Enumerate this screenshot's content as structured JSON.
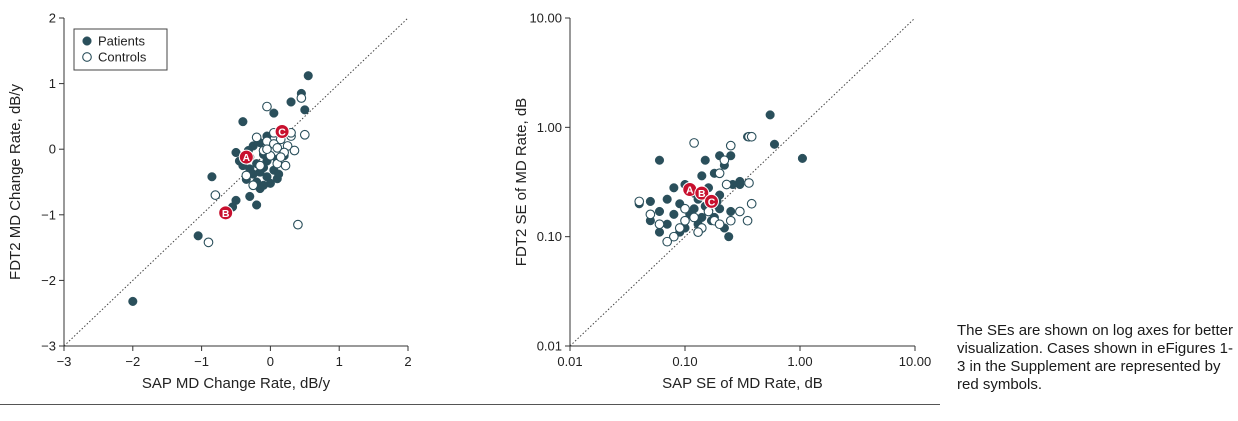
{
  "colors": {
    "patients": "#2a4f5b",
    "highlight": "#c8102e",
    "axis": "#333333",
    "text": "#222222"
  },
  "note": "The SEs are shown on log axes for better visualization. Cases shown in eFigures 1-3 in the Supplement are represented by red symbols.",
  "chart_data": [
    {
      "type": "scatter",
      "title": "",
      "xlabel": "SAP MD Change Rate, dB/y",
      "ylabel": "FDT2 MD Change Rate, dB/y",
      "xlim": [
        -3,
        2
      ],
      "ylim": [
        -3,
        2
      ],
      "xticks": [
        -3,
        -2,
        -1,
        0,
        1,
        2
      ],
      "yticks": [
        -3,
        -2,
        -1,
        0,
        1,
        2
      ],
      "xtick_labels": [
        "−3",
        "−2",
        "−1",
        "0",
        "1",
        "2"
      ],
      "ytick_labels": [
        "−3",
        "−2",
        "−1",
        "0",
        "1",
        "2"
      ],
      "scale": "linear",
      "identity_line": true,
      "legend_position": "top-left",
      "series": [
        {
          "name": "Patients",
          "marker": "filled",
          "points": [
            [
              0.55,
              1.12
            ],
            [
              0.45,
              0.85
            ],
            [
              0.3,
              0.72
            ],
            [
              -0.4,
              0.42
            ],
            [
              0.05,
              0.55
            ],
            [
              -0.15,
              0.1
            ],
            [
              -0.1,
              -0.08
            ],
            [
              -0.3,
              -0.12
            ],
            [
              -0.45,
              -0.18
            ],
            [
              -0.05,
              -0.18
            ],
            [
              0.1,
              -0.15
            ],
            [
              -0.2,
              -0.22
            ],
            [
              -0.3,
              -0.3
            ],
            [
              -0.1,
              -0.28
            ],
            [
              0.05,
              -0.32
            ],
            [
              -0.15,
              -0.35
            ],
            [
              -0.25,
              -0.38
            ],
            [
              -0.05,
              -0.42
            ],
            [
              0.1,
              -0.45
            ],
            [
              -0.35,
              -0.46
            ],
            [
              -0.2,
              -0.5
            ],
            [
              0.0,
              -0.52
            ],
            [
              -0.15,
              -0.6
            ],
            [
              -0.3,
              -0.72
            ],
            [
              -0.5,
              -0.78
            ],
            [
              -0.2,
              -0.85
            ],
            [
              -0.55,
              -0.88
            ],
            [
              -0.85,
              -0.42
            ],
            [
              -1.05,
              -1.32
            ],
            [
              -2.0,
              -2.32
            ],
            [
              0.5,
              0.6
            ],
            [
              0.15,
              0.3
            ],
            [
              -0.05,
              0.2
            ],
            [
              -0.25,
              0.05
            ],
            [
              -0.4,
              -0.25
            ],
            [
              0.2,
              -0.1
            ],
            [
              -0.1,
              -0.55
            ],
            [
              0.12,
              -0.38
            ],
            [
              -0.5,
              -0.05
            ],
            [
              -0.32,
              -0.02
            ]
          ]
        },
        {
          "name": "Controls",
          "marker": "open",
          "points": [
            [
              -0.05,
              0.65
            ],
            [
              0.45,
              0.78
            ],
            [
              0.5,
              0.22
            ],
            [
              0.3,
              0.2
            ],
            [
              0.15,
              0.15
            ],
            [
              -0.05,
              0.12
            ],
            [
              0.25,
              0.05
            ],
            [
              0.05,
              0.08
            ],
            [
              0.1,
              0.02
            ],
            [
              -0.1,
              -0.02
            ],
            [
              0.2,
              -0.05
            ],
            [
              0.0,
              -0.1
            ],
            [
              0.35,
              -0.02
            ],
            [
              0.22,
              -0.25
            ],
            [
              -0.15,
              -0.25
            ],
            [
              -0.35,
              -0.4
            ],
            [
              -0.25,
              -0.55
            ],
            [
              -0.8,
              -0.7
            ],
            [
              -0.9,
              -1.42
            ],
            [
              0.4,
              -1.15
            ],
            [
              0.05,
              0.25
            ],
            [
              -0.2,
              0.18
            ],
            [
              0.3,
              0.25
            ],
            [
              0.1,
              -0.22
            ],
            [
              -0.05,
              0.0
            ],
            [
              0.15,
              -0.12
            ]
          ]
        }
      ],
      "highlighted": [
        {
          "label": "A",
          "x": -0.35,
          "y": -0.12
        },
        {
          "label": "B",
          "x": -0.65,
          "y": -0.97
        },
        {
          "label": "C",
          "x": 0.17,
          "y": 0.27
        }
      ]
    },
    {
      "type": "scatter",
      "title": "",
      "xlabel": "SAP SE of MD Rate, dB",
      "ylabel": "FDT2 SE of MD Rate, dB",
      "xlim": [
        0.01,
        10
      ],
      "ylim": [
        0.01,
        10
      ],
      "xticks": [
        0.01,
        0.1,
        1,
        10
      ],
      "yticks": [
        0.01,
        0.1,
        1,
        10
      ],
      "xtick_labels": [
        "0.01",
        "0.10",
        "1.00",
        "10.00"
      ],
      "ytick_labels": [
        "0.01",
        "0.10",
        "1.00",
        "10.00"
      ],
      "scale": "log",
      "identity_line": true,
      "series": [
        {
          "name": "Patients",
          "marker": "filled",
          "points": [
            [
              0.55,
              1.3
            ],
            [
              0.6,
              0.7
            ],
            [
              1.05,
              0.52
            ],
            [
              0.35,
              0.82
            ],
            [
              0.2,
              0.55
            ],
            [
              0.15,
              0.5
            ],
            [
              0.06,
              0.5
            ],
            [
              0.25,
              0.55
            ],
            [
              0.22,
              0.45
            ],
            [
              0.18,
              0.38
            ],
            [
              0.14,
              0.36
            ],
            [
              0.3,
              0.32
            ],
            [
              0.08,
              0.28
            ],
            [
              0.1,
              0.3
            ],
            [
              0.12,
              0.25
            ],
            [
              0.16,
              0.28
            ],
            [
              0.2,
              0.24
            ],
            [
              0.07,
              0.22
            ],
            [
              0.05,
              0.21
            ],
            [
              0.04,
              0.2
            ],
            [
              0.09,
              0.2
            ],
            [
              0.12,
              0.18
            ],
            [
              0.15,
              0.19
            ],
            [
              0.2,
              0.18
            ],
            [
              0.25,
              0.17
            ],
            [
              0.06,
              0.17
            ],
            [
              0.08,
              0.16
            ],
            [
              0.11,
              0.16
            ],
            [
              0.14,
              0.15
            ],
            [
              0.18,
              0.15
            ],
            [
              0.05,
              0.14
            ],
            [
              0.07,
              0.13
            ],
            [
              0.1,
              0.12
            ],
            [
              0.13,
              0.13
            ],
            [
              0.17,
              0.14
            ],
            [
              0.22,
              0.12
            ],
            [
              0.06,
              0.11
            ],
            [
              0.09,
              0.11
            ],
            [
              0.24,
              0.1
            ],
            [
              0.3,
              0.3
            ],
            [
              0.26,
              0.3
            ],
            [
              0.13,
              0.22
            ],
            [
              0.19,
              0.21
            ]
          ]
        },
        {
          "name": "Controls",
          "marker": "open",
          "points": [
            [
              0.36,
              0.82
            ],
            [
              0.38,
              0.82
            ],
            [
              0.12,
              0.72
            ],
            [
              0.25,
              0.68
            ],
            [
              0.22,
              0.5
            ],
            [
              0.2,
              0.38
            ],
            [
              0.36,
              0.31
            ],
            [
              0.04,
              0.21
            ],
            [
              0.38,
              0.2
            ],
            [
              0.1,
              0.18
            ],
            [
              0.3,
              0.17
            ],
            [
              0.05,
              0.16
            ],
            [
              0.12,
              0.15
            ],
            [
              0.18,
              0.14
            ],
            [
              0.25,
              0.14
            ],
            [
              0.35,
              0.14
            ],
            [
              0.06,
              0.13
            ],
            [
              0.09,
              0.12
            ],
            [
              0.14,
              0.12
            ],
            [
              0.2,
              0.13
            ],
            [
              0.08,
              0.1
            ],
            [
              0.07,
              0.09
            ],
            [
              0.16,
              0.17
            ],
            [
              0.13,
              0.11
            ],
            [
              0.1,
              0.14
            ],
            [
              0.23,
              0.3
            ]
          ]
        }
      ],
      "highlighted": [
        {
          "label": "A",
          "x": 0.11,
          "y": 0.27
        },
        {
          "label": "B",
          "x": 0.14,
          "y": 0.25
        },
        {
          "label": "C",
          "x": 0.17,
          "y": 0.21
        }
      ]
    }
  ]
}
